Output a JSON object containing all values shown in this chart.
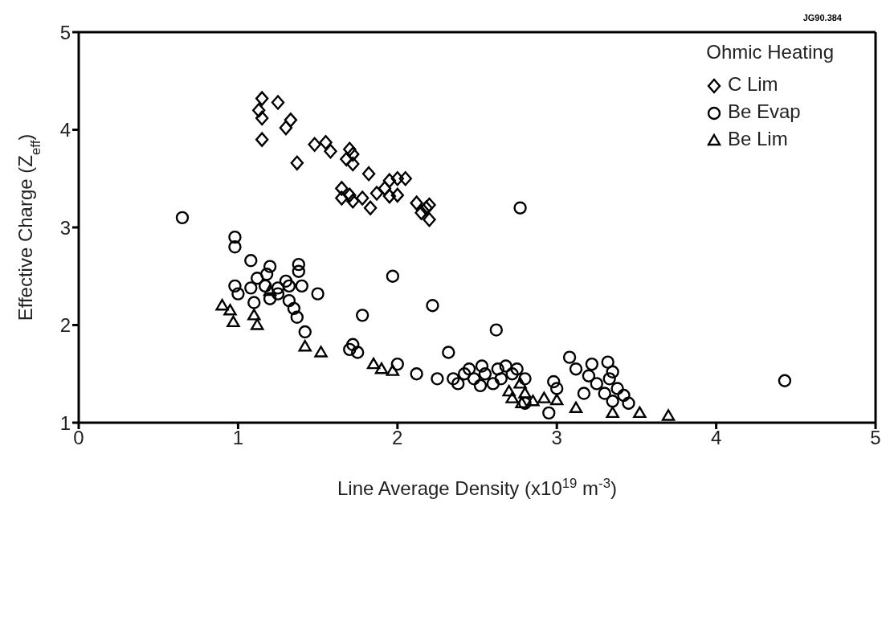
{
  "chart_data": {
    "type": "scatter",
    "xlabel": "Line Average Density (x10$^{19}$ m$^{-3}$)",
    "ylabel": "Effective Charge (Z$_{eff}$)",
    "legend_title": "Ohmic Heating",
    "annotations": [
      "JG90.384"
    ],
    "xlim": [
      0,
      5
    ],
    "ylim": [
      1,
      5
    ],
    "xticks": [
      0,
      1,
      2,
      3,
      4,
      5
    ],
    "yticks": [
      1,
      2,
      3,
      4,
      5
    ],
    "legend": "top right",
    "series": [
      {
        "name": "C Lim",
        "color": "#000000",
        "marker": "diamond",
        "x": [
          1.13,
          1.15,
          1.15,
          1.15,
          1.25,
          1.3,
          1.33,
          1.37,
          1.48,
          1.55,
          1.58,
          1.65,
          1.68,
          1.7,
          1.72,
          1.72,
          1.65,
          1.7,
          1.72,
          1.78,
          1.82,
          1.83,
          1.87,
          1.92,
          1.95,
          1.95,
          2.0,
          2.0,
          2.05,
          2.12,
          2.15,
          2.18,
          2.2,
          2.2
        ],
        "values": [
          4.2,
          4.32,
          4.12,
          3.9,
          4.28,
          4.02,
          4.1,
          3.66,
          3.85,
          3.87,
          3.78,
          3.4,
          3.7,
          3.8,
          3.75,
          3.65,
          3.3,
          3.33,
          3.27,
          3.3,
          3.55,
          3.2,
          3.35,
          3.4,
          3.48,
          3.32,
          3.5,
          3.33,
          3.5,
          3.25,
          3.15,
          3.2,
          3.23,
          3.08
        ]
      },
      {
        "name": "Be Evap",
        "color": "#000000",
        "marker": "circle",
        "x": [
          0.65,
          0.98,
          0.98,
          1.08,
          0.98,
          1.0,
          1.08,
          1.1,
          1.12,
          1.17,
          1.2,
          1.18,
          1.2,
          1.25,
          1.25,
          1.3,
          1.32,
          1.38,
          1.38,
          1.4,
          1.32,
          1.35,
          1.37,
          1.42,
          1.5,
          1.7,
          1.72,
          1.75,
          1.78,
          1.97,
          2.0,
          2.12,
          2.22,
          2.25,
          2.32,
          2.35,
          2.38,
          2.42,
          2.45,
          2.48,
          2.52,
          2.53,
          2.55,
          2.6,
          2.62,
          2.63,
          2.65,
          2.68,
          2.72,
          2.75,
          2.77,
          2.8,
          2.8,
          2.95,
          2.98,
          3.0,
          3.08,
          3.12,
          3.17,
          3.2,
          3.22,
          3.25,
          3.3,
          3.32,
          3.33,
          3.35,
          3.35,
          3.38,
          3.42,
          3.45,
          4.43
        ],
        "values": [
          3.1,
          2.9,
          2.8,
          2.66,
          2.4,
          2.32,
          2.38,
          2.23,
          2.48,
          2.4,
          2.6,
          2.52,
          2.27,
          2.32,
          2.38,
          2.45,
          2.4,
          2.55,
          2.62,
          2.4,
          2.25,
          2.17,
          2.08,
          1.93,
          2.32,
          1.75,
          1.8,
          1.72,
          2.1,
          2.5,
          1.6,
          1.5,
          2.2,
          1.45,
          1.72,
          1.45,
          1.4,
          1.5,
          1.55,
          1.45,
          1.38,
          1.58,
          1.5,
          1.4,
          1.95,
          1.55,
          1.45,
          1.58,
          1.5,
          1.55,
          3.2,
          1.45,
          1.2,
          1.1,
          1.42,
          1.35,
          1.67,
          1.55,
          1.3,
          1.48,
          1.6,
          1.4,
          1.3,
          1.62,
          1.45,
          1.52,
          1.22,
          1.35,
          1.28,
          1.2,
          1.43
        ]
      },
      {
        "name": "Be Lim",
        "color": "#000000",
        "marker": "triangle",
        "x": [
          0.9,
          0.95,
          0.97,
          1.1,
          1.12,
          1.2,
          1.42,
          1.52,
          1.85,
          1.9,
          1.97,
          2.7,
          2.72,
          2.77,
          2.78,
          2.8,
          2.85,
          2.92,
          3.0,
          3.12,
          3.35,
          3.52,
          3.7
        ],
        "values": [
          2.2,
          2.15,
          2.03,
          2.1,
          2.0,
          2.35,
          1.78,
          1.72,
          1.6,
          1.55,
          1.53,
          1.32,
          1.25,
          1.4,
          1.2,
          1.3,
          1.22,
          1.25,
          1.23,
          1.15,
          1.1,
          1.1,
          1.07
        ]
      }
    ]
  }
}
